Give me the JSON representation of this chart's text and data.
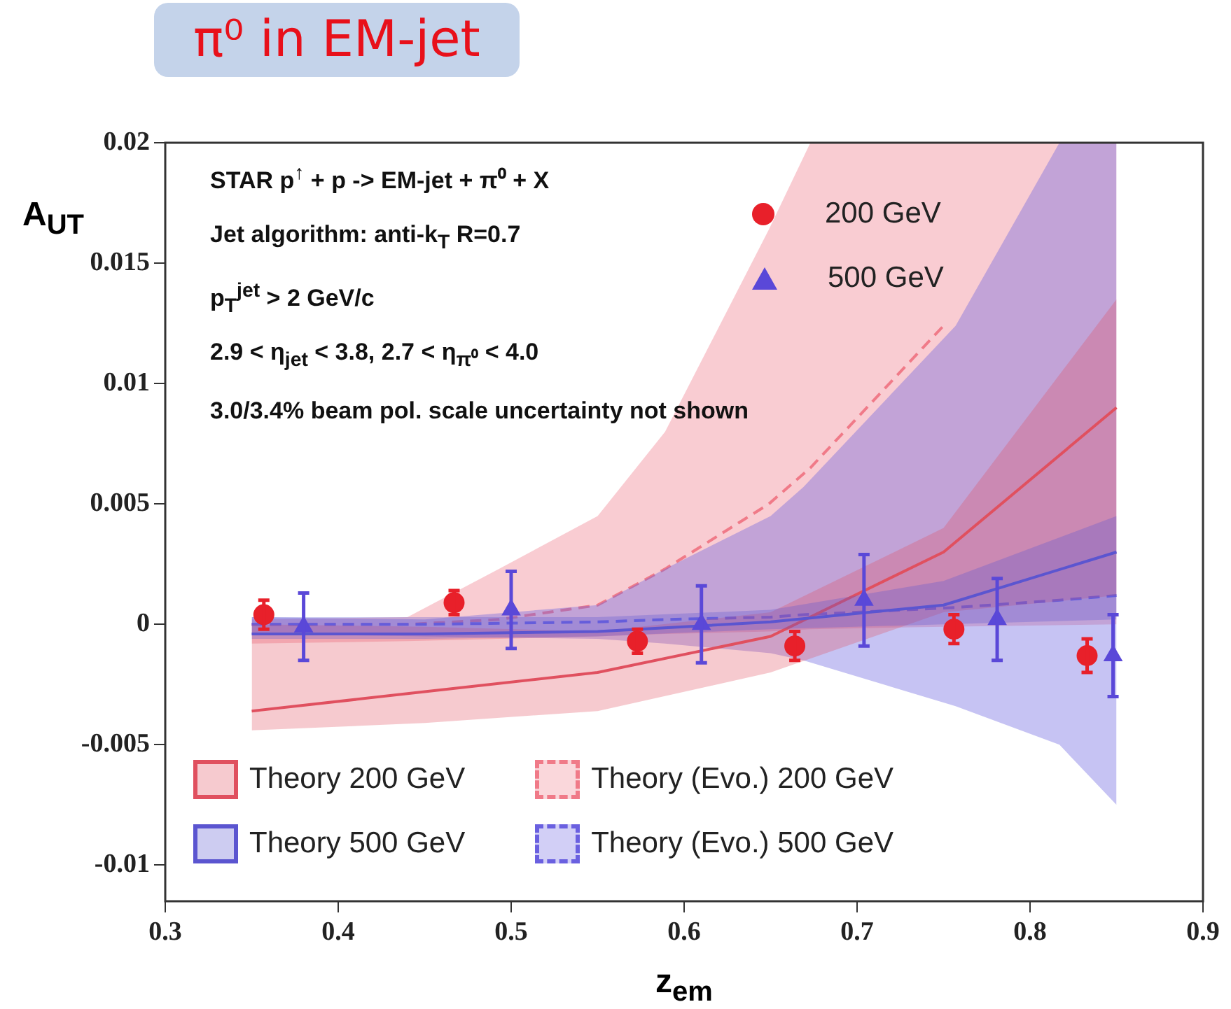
{
  "chart_data": {
    "type": "scatter",
    "title": "π⁰ in EM-jet",
    "xlabel": "z$_{em}$",
    "ylabel": "A$_{UT}$",
    "xlim": [
      0.3,
      0.9
    ],
    "ylim": [
      -0.0115,
      0.02
    ],
    "xticks": [
      0.3,
      0.4,
      0.5,
      0.6,
      0.7,
      0.8,
      0.9
    ],
    "yticks": [
      -0.01,
      -0.005,
      0,
      0.005,
      0.01,
      0.015,
      0.02
    ],
    "legend": "bottom left",
    "annotations": [
      "STAR    p$^{↑}$ + p -> EM-jet + π⁰ + X",
      "Jet algorithm: anti-k$_{T}$ R=0.7",
      "p$_{T}$$^{jet}$ > 2 GeV/c",
      "2.9 < η$_{jet}$ < 3.8, 2.7 < η$_{π⁰}$ < 4.0",
      "3.0/3.4% beam pol. scale uncertainty not shown"
    ],
    "series": [
      {
        "name": "Theory (Evo.) 200 GeV",
        "type": "line",
        "color": "#f07a88",
        "line_style": "dashed",
        "x": [
          0.35,
          0.44,
          0.493,
          0.55,
          0.589,
          0.649,
          0.673,
          0.75,
          0.85
        ],
        "values": [
          0,
          0,
          0.0002,
          0.0008,
          0.0023,
          0.005,
          0.0065,
          0.0124,
          null
        ],
        "lower": [
          -0.0008,
          -0.0007,
          -0.0006,
          -0.0005,
          -0.0004,
          -0.0003,
          -0.0002,
          -0.0001,
          0
        ],
        "upper": [
          0.0002,
          0.0003,
          0.0023,
          0.0045,
          0.008,
          0.0164,
          0.02,
          0.02,
          0.02
        ]
      },
      {
        "name": "Theory (Evo.) 500 GeV",
        "type": "line",
        "color": "#6a60e0",
        "line_style": "dashed",
        "x": [
          0.35,
          0.45,
          0.55,
          0.589,
          0.65,
          0.669,
          0.757,
          0.817,
          0.85
        ],
        "values": [
          0,
          0,
          0.0001,
          0.0002,
          0.0003,
          0.0004,
          0.0007,
          0.001,
          0.0012
        ],
        "lower": [
          -0.0004,
          -0.0005,
          -0.0006,
          -0.0008,
          -0.0012,
          -0.0015,
          -0.0034,
          -0.005,
          -0.0075
        ],
        "upper": [
          0.0003,
          0.0002,
          0.0008,
          0.0023,
          0.0045,
          0.0057,
          0.0124,
          0.02,
          0.02
        ]
      },
      {
        "name": "Theory 200 GeV",
        "type": "line",
        "color": "#e0505f",
        "line_style": "solid",
        "x": [
          0.35,
          0.45,
          0.55,
          0.65,
          0.75,
          0.85
        ],
        "values": [
          -0.0036,
          -0.0028,
          -0.002,
          -0.0005,
          0.003,
          0.009
        ],
        "lower": [
          -0.0044,
          -0.0041,
          -0.0036,
          -0.002,
          0.0005,
          0.0012
        ],
        "upper": [
          0,
          -0.0001,
          -0.0003,
          0.0005,
          0.004,
          0.0135
        ]
      },
      {
        "name": "Theory 500 GeV",
        "type": "line",
        "color": "#5b55d0",
        "line_style": "solid",
        "x": [
          0.35,
          0.45,
          0.55,
          0.65,
          0.75,
          0.85
        ],
        "values": [
          -0.0004,
          -0.0004,
          -0.0003,
          0.0001,
          0.0008,
          0.003
        ],
        "lower": [
          -0.0006,
          -0.0006,
          -0.0005,
          -0.0002,
          0,
          0.0002
        ],
        "upper": [
          0.0003,
          0.0003,
          0.0003,
          0.0006,
          0.0018,
          0.0045
        ]
      },
      {
        "name": "200 GeV",
        "marker": "circle",
        "color": "#e8202a",
        "x": [
          0.357,
          0.467,
          0.573,
          0.664,
          0.756,
          0.833
        ],
        "values": [
          0.0004,
          0.0009,
          -0.0007,
          -0.0009,
          -0.0002,
          -0.0013
        ],
        "errors": [
          0.0006,
          0.0005,
          0.0005,
          0.0006,
          0.0006,
          0.0007
        ]
      },
      {
        "name": "500 GeV",
        "marker": "triangle",
        "color": "#5a48d8",
        "x": [
          0.38,
          0.5,
          0.61,
          0.704,
          0.781,
          0.848
        ],
        "values": [
          -0.0001,
          0.0006,
          0,
          0.001,
          0.0002,
          -0.0013
        ],
        "errors": [
          0.0014,
          0.0016,
          0.0016,
          0.0019,
          0.0017,
          0.0017
        ]
      }
    ]
  }
}
